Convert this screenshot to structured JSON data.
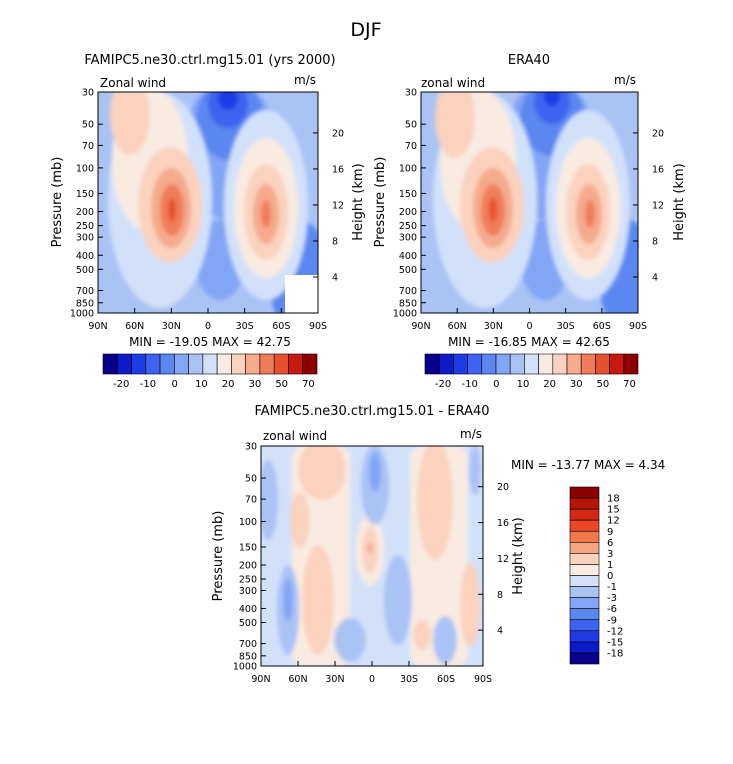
{
  "page_title": "DJF",
  "chart_data": [
    {
      "id": "model",
      "type": "heatmap",
      "title": "FAMIPC5.ne30.ctrl.mg15.01 (yrs 2000)",
      "left_label": "Zonal wind",
      "units": "m/s",
      "ylabel": "Pressure (mb)",
      "y2label": "Height (km)",
      "pressure_ticks": [
        "30",
        "50",
        "70",
        "100",
        "150",
        "200",
        "250",
        "300",
        "400",
        "500",
        "700",
        "850",
        "1000"
      ],
      "height_ticks": [
        "20",
        "16",
        "12",
        "8",
        "4"
      ],
      "lat_ticks": [
        "90N",
        "60N",
        "30N",
        "0",
        "30S",
        "60S",
        "90S"
      ],
      "stats": "MIN = -19.05   MAX =  42.75",
      "min": -19.05,
      "max": 42.75,
      "colorbar_labels": [
        "-20",
        "-10",
        "0",
        "10",
        "20",
        "30",
        "50",
        "70"
      ]
    },
    {
      "id": "obs",
      "type": "heatmap",
      "title": "ERA40",
      "left_label": "zonal wind",
      "units": "m/s",
      "ylabel": "Pressure (mb)",
      "y2label": "Height (km)",
      "pressure_ticks": [
        "30",
        "50",
        "70",
        "100",
        "150",
        "200",
        "250",
        "300",
        "400",
        "500",
        "700",
        "850",
        "1000"
      ],
      "height_ticks": [
        "20",
        "16",
        "12",
        "8",
        "4"
      ],
      "lat_ticks": [
        "90N",
        "60N",
        "30N",
        "0",
        "30S",
        "60S",
        "90S"
      ],
      "stats": "MIN = -16.85   MAX =  42.65",
      "min": -16.85,
      "max": 42.65,
      "colorbar_labels": [
        "-20",
        "-10",
        "0",
        "10",
        "20",
        "30",
        "50",
        "70"
      ]
    },
    {
      "id": "diff",
      "type": "heatmap",
      "title": "FAMIPC5.ne30.ctrl.mg15.01 - ERA40",
      "left_label": "zonal wind",
      "units": "m/s",
      "ylabel": "Pressure (mb)",
      "y2label": "Height (km)",
      "pressure_ticks": [
        "30",
        "50",
        "70",
        "100",
        "150",
        "200",
        "250",
        "300",
        "400",
        "500",
        "700",
        "850",
        "1000"
      ],
      "height_ticks": [
        "20",
        "16",
        "12",
        "8",
        "4"
      ],
      "lat_ticks": [
        "90N",
        "60N",
        "30N",
        "0",
        "30S",
        "60S",
        "90S"
      ],
      "stats": "MIN = -13.77   MAX =   4.34",
      "min": -13.77,
      "max": 4.34,
      "colorbar_labels": [
        "18",
        "15",
        "12",
        "9",
        "6",
        "3",
        "1",
        "0",
        "-1",
        "-3",
        "-6",
        "-9",
        "-12",
        "-15",
        "-18"
      ]
    }
  ],
  "colors": {
    "main_scale": [
      "#08008b",
      "#0c1ac8",
      "#1e3ce6",
      "#3c64f0",
      "#5a87f0",
      "#82a5f5",
      "#aac3f5",
      "#d2e1fa",
      "#faebe1",
      "#fad2be",
      "#f5aa8c",
      "#f07d5a",
      "#e6502d",
      "#c8190f",
      "#8c0000"
    ],
    "diff_scale": [
      "#8c0000",
      "#b4140a",
      "#d22814",
      "#eb4628",
      "#f0784b",
      "#f5a582",
      "#fad2be",
      "#faebe1",
      "#d2e1fa",
      "#aac3f5",
      "#82a5f5",
      "#5a87f0",
      "#3c64f0",
      "#1e3ce6",
      "#0c1ac8",
      "#08008b"
    ]
  }
}
